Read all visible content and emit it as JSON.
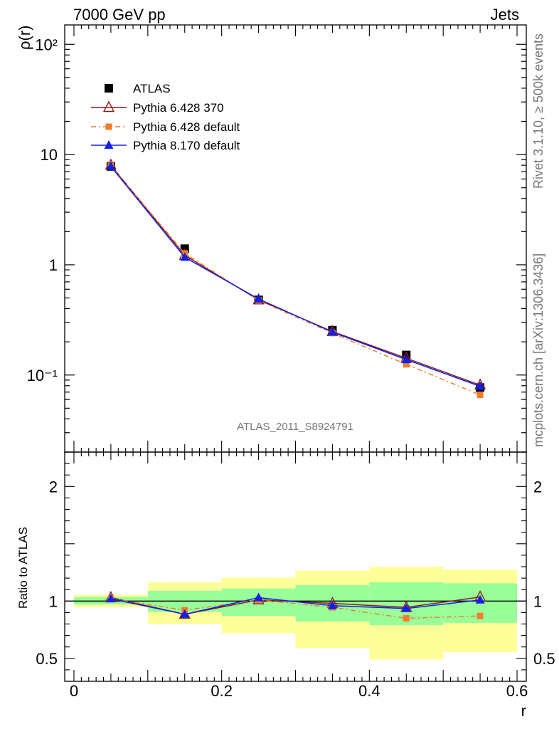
{
  "header": {
    "left": "7000 GeV pp",
    "right": "Jets"
  },
  "side": {
    "rivet": "Rivet 3.1.10, ≥ 500k events",
    "mcplots": "mcplots.cern.ch [arXiv:1306.3436]"
  },
  "watermark": "ATLAS_2011_S8924791",
  "chart_data": [
    {
      "type": "scatter",
      "ylabel": "ρ(r)",
      "yscale": "log",
      "ylim": [
        0.02,
        150
      ],
      "xlim": [
        -0.0125,
        0.6125
      ],
      "y_tick_labels": [
        "10⁻¹",
        "1",
        "10",
        "10²"
      ],
      "y_ticks": [
        0.1,
        1,
        10,
        100
      ],
      "x": [
        0.05,
        0.15,
        0.25,
        0.35,
        0.45,
        0.55
      ],
      "legend_placement": "top-left",
      "series": [
        {
          "name": "ATLAS",
          "marker": "square",
          "color": "#000000",
          "line": "none",
          "values": [
            7.8,
            1.4,
            0.48,
            0.255,
            0.152,
            0.077
          ]
        },
        {
          "name": "Pythia 6.428 370",
          "marker": "open-triangle",
          "color": "#8b1a1a",
          "line": "solid",
          "values": [
            8.0,
            1.22,
            0.48,
            0.248,
            0.142,
            0.081
          ]
        },
        {
          "name": "Pythia 6.428 default",
          "marker": "small-square",
          "color": "#f07d2c",
          "line": "dashdot",
          "values": [
            7.9,
            1.27,
            0.475,
            0.24,
            0.125,
            0.066
          ]
        },
        {
          "name": "Pythia 8.170 default",
          "marker": "triangle",
          "color": "#1020e8",
          "line": "solid",
          "values": [
            7.8,
            1.17,
            0.49,
            0.245,
            0.138,
            0.079
          ]
        }
      ]
    },
    {
      "type": "line",
      "ylabel": "Ratio to ATLAS",
      "xlabel": "r",
      "ylim": [
        0.3,
        2.3
      ],
      "xlim": [
        -0.0125,
        0.6125
      ],
      "x_ticks": [
        0,
        0.2,
        0.4,
        0.6
      ],
      "x_tick_labels": [
        "0",
        "0.2",
        "0.4",
        "0.6"
      ],
      "y_ticks": [
        0.5,
        1,
        2
      ],
      "y_tick_labels": [
        "0.5",
        "1",
        "2"
      ],
      "bands": {
        "bin_edges": [
          0,
          0.1,
          0.2,
          0.3,
          0.4,
          0.5,
          0.6
        ],
        "stat_low": [
          0.97,
          0.905,
          0.87,
          0.82,
          0.79,
          0.81
        ],
        "stat_high": [
          1.035,
          1.09,
          1.11,
          1.14,
          1.165,
          1.155
        ],
        "total_low": [
          0.945,
          0.8,
          0.72,
          0.59,
          0.49,
          0.555
        ],
        "total_high": [
          1.055,
          1.165,
          1.205,
          1.265,
          1.3,
          1.275
        ],
        "stat_color": "#99ff99",
        "total_color": "#ffff99"
      },
      "series": [
        {
          "name": "Pythia 6.428 370",
          "color": "#8b1a1a",
          "values": [
            1.03,
            0.885,
            1.01,
            0.98,
            0.945,
            1.035
          ]
        },
        {
          "name": "Pythia 6.428 default",
          "color": "#f07d2c",
          "values": [
            1.02,
            0.92,
            1.01,
            0.945,
            0.85,
            0.87
          ]
        },
        {
          "name": "Pythia 8.170 default",
          "color": "#1020e8",
          "values": [
            1.02,
            0.885,
            1.03,
            0.96,
            0.935,
            1.01
          ]
        }
      ]
    }
  ]
}
